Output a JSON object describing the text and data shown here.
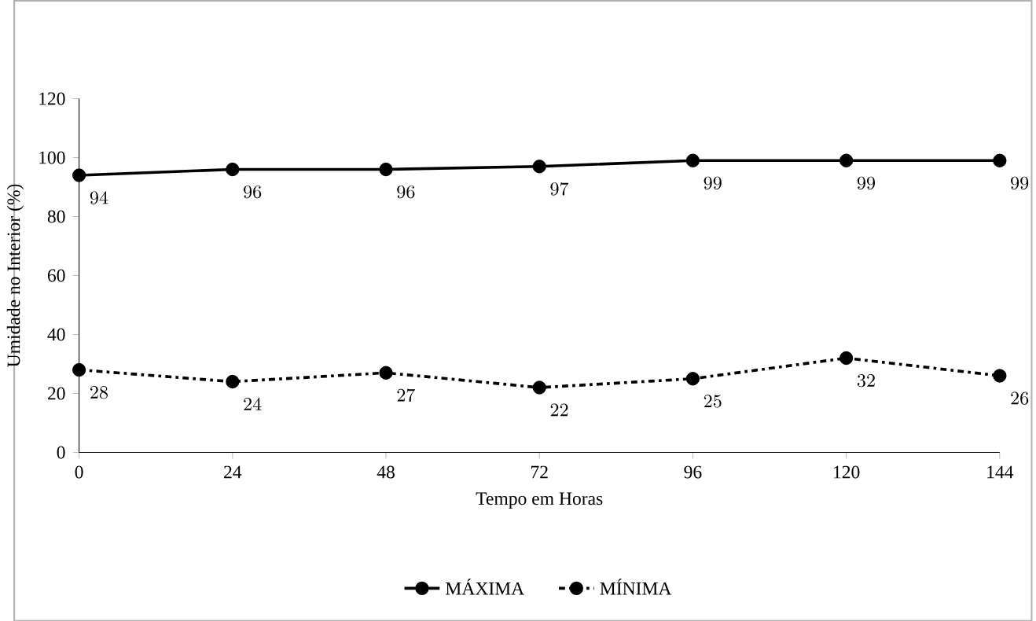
{
  "chart_data": {
    "type": "line",
    "xlabel": "Tempo em Horas",
    "ylabel": "Umidade no Interior (%)",
    "x": [
      0,
      24,
      48,
      72,
      96,
      120,
      144
    ],
    "series": [
      {
        "name": "MÁXIMA",
        "color": "#000000",
        "values": [
          94,
          96,
          96,
          97,
          99,
          99,
          99
        ],
        "line_style": "solid"
      },
      {
        "name": "MÍNIMA",
        "color": "#000000",
        "values": [
          28,
          24,
          27,
          22,
          25,
          32,
          26
        ],
        "line_style": "dashed"
      }
    ],
    "xlim": [
      0,
      144
    ],
    "xticks": [
      0,
      24,
      48,
      72,
      96,
      120,
      144
    ],
    "ylim": [
      0,
      120
    ],
    "yticks": [
      0,
      20,
      40,
      60,
      80,
      100,
      120
    ],
    "grid": false,
    "legend": "bottom",
    "marker": "circle",
    "data_labels": true
  }
}
